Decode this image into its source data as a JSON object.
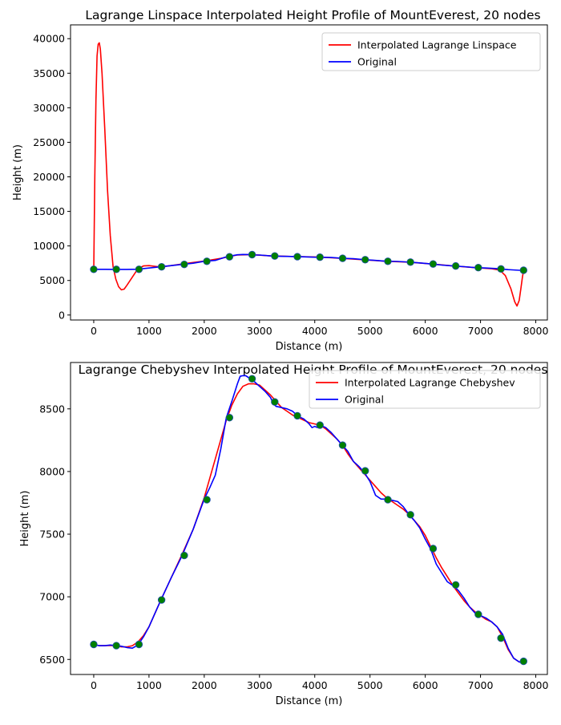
{
  "chart_data": [
    {
      "type": "line",
      "title": "Lagrange Linspace Interpolated Height Profile of MountEverest, 20 nodes",
      "xlabel": "Distance (m)",
      "ylabel": "Height (m)",
      "xlim": [
        -420,
        8210
      ],
      "ylim": [
        -720,
        42000
      ],
      "xticks": [
        0,
        1000,
        2000,
        3000,
        4000,
        5000,
        6000,
        7000,
        8000
      ],
      "yticks": [
        0,
        5000,
        10000,
        15000,
        20000,
        25000,
        30000,
        35000,
        40000
      ],
      "grid": false,
      "legend": "top-right",
      "series": [
        {
          "name": "Interpolated Lagrange Linspace",
          "color": "#ff0000",
          "x": [
            0,
            20,
            40,
            60,
            80,
            100,
            120,
            150,
            200,
            250,
            300,
            350,
            400,
            450,
            500,
            550,
            600,
            700,
            800,
            900,
            1000,
            1100,
            1200,
            1400,
            1700,
            2000,
            2300,
            2600,
            2850,
            3200,
            3700,
            4100,
            4500,
            4900,
            5300,
            5700,
            6100,
            6500,
            6900,
            7200,
            7350,
            7450,
            7550,
            7620,
            7660,
            7700,
            7730,
            7760,
            7780
          ],
          "y": [
            6650,
            20000,
            31000,
            37500,
            39200,
            39400,
            38500,
            35000,
            27000,
            18000,
            11500,
            7000,
            5200,
            4100,
            3650,
            3750,
            4300,
            5500,
            6700,
            7100,
            7150,
            7050,
            6950,
            7150,
            7500,
            7800,
            8200,
            8700,
            8750,
            8550,
            8450,
            8380,
            8200,
            8000,
            7780,
            7660,
            7390,
            7100,
            6860,
            6700,
            6500,
            5700,
            3800,
            1900,
            1300,
            2100,
            3800,
            5600,
            6470
          ]
        },
        {
          "name": "Original",
          "color": "#0000ff",
          "x": [
            0,
            200,
            400,
            600,
            800,
            1000,
            1200,
            1400,
            1600,
            1800,
            2000,
            2200,
            2400,
            2600,
            2700,
            2800,
            2900,
            3000,
            3200,
            3300,
            3500,
            3700,
            3900,
            4000,
            4100,
            4300,
            4500,
            4700,
            4900,
            5100,
            5300,
            5500,
            5700,
            5900,
            6100,
            6300,
            6500,
            6700,
            6900,
            7100,
            7300,
            7500,
            7700,
            7780
          ],
          "y": [
            6620,
            6615,
            6610,
            6600,
            6630,
            6800,
            6980,
            7150,
            7330,
            7500,
            7780,
            7900,
            8430,
            8720,
            8760,
            8750,
            8700,
            8680,
            8550,
            8520,
            8490,
            8440,
            8400,
            8370,
            8360,
            8320,
            8210,
            8150,
            8010,
            7900,
            7780,
            7760,
            7660,
            7550,
            7390,
            7230,
            7100,
            7000,
            6860,
            6800,
            6720,
            6570,
            6480,
            6480
          ]
        }
      ],
      "markers": {
        "color": "#008000",
        "x": [
          0,
          409,
          819,
          1228,
          1638,
          2047,
          2457,
          2866,
          3276,
          3685,
          4094,
          4504,
          4913,
          5323,
          5732,
          6142,
          6551,
          6960,
          7370,
          7779
        ],
        "y": [
          6620,
          6610,
          6620,
          6980,
          7330,
          7780,
          8430,
          8740,
          8550,
          8440,
          8370,
          8210,
          8010,
          7780,
          7660,
          7390,
          7100,
          6860,
          6670,
          6480
        ]
      }
    },
    {
      "type": "line",
      "title": "Lagrange Chebyshev Interpolated Height Profile of MountEverest, 20 nodes",
      "xlabel": "Distance (m)",
      "ylabel": "Height (m)",
      "xlim": [
        -420,
        8210
      ],
      "ylim": [
        6380,
        8870
      ],
      "xticks": [
        0,
        1000,
        2000,
        3000,
        4000,
        5000,
        6000,
        7000,
        8000
      ],
      "yticks": [
        6500,
        7000,
        7500,
        8000,
        8500
      ],
      "grid": false,
      "legend": "top-right",
      "series": [
        {
          "name": "Interpolated Lagrange Chebyshev",
          "color": "#ff0000",
          "x": [
            0,
            100,
            200,
            300,
            400,
            500,
            600,
            700,
            800,
            900,
            1000,
            1200,
            1400,
            1600,
            1800,
            2000,
            2200,
            2400,
            2500,
            2600,
            2700,
            2800,
            2900,
            3000,
            3100,
            3200,
            3300,
            3400,
            3500,
            3600,
            3700,
            3800,
            3900,
            4000,
            4100,
            4200,
            4300,
            4400,
            4500,
            4600,
            4700,
            4800,
            4900,
            5000,
            5100,
            5200,
            5300,
            5400,
            5500,
            5600,
            5700,
            5800,
            5900,
            6000,
            6100,
            6200,
            6300,
            6400,
            6500,
            6600,
            6700,
            6800,
            6900,
            7000,
            7100,
            7200,
            7300,
            7400,
            7500,
            7600,
            7700,
            7780
          ],
          "y": [
            6620,
            6610,
            6610,
            6612,
            6610,
            6600,
            6600,
            6610,
            6640,
            6690,
            6760,
            6960,
            7150,
            7340,
            7540,
            7790,
            8100,
            8410,
            8530,
            8620,
            8680,
            8700,
            8700,
            8690,
            8650,
            8610,
            8560,
            8510,
            8480,
            8450,
            8430,
            8410,
            8390,
            8380,
            8370,
            8340,
            8300,
            8260,
            8210,
            8140,
            8080,
            8030,
            7980,
            7930,
            7880,
            7830,
            7790,
            7760,
            7730,
            7700,
            7660,
            7610,
            7560,
            7490,
            7400,
            7310,
            7230,
            7160,
            7090,
            7030,
            6970,
            6920,
            6880,
            6850,
            6820,
            6800,
            6760,
            6680,
            6580,
            6510,
            6480,
            6480
          ]
        },
        {
          "name": "Original",
          "color": "#0000ff",
          "x": [
            0,
            100,
            200,
            300,
            400,
            500,
            600,
            700,
            800,
            900,
            1000,
            1200,
            1400,
            1600,
            1800,
            2000,
            2100,
            2200,
            2300,
            2400,
            2500,
            2600,
            2650,
            2700,
            2750,
            2800,
            2850,
            2900,
            3000,
            3100,
            3200,
            3250,
            3300,
            3400,
            3500,
            3600,
            3650,
            3700,
            3800,
            3850,
            3900,
            3950,
            4000,
            4050,
            4100,
            4200,
            4300,
            4400,
            4500,
            4600,
            4700,
            4800,
            4900,
            5000,
            5100,
            5200,
            5300,
            5400,
            5500,
            5600,
            5700,
            5800,
            5900,
            6000,
            6100,
            6200,
            6300,
            6400,
            6500,
            6600,
            6700,
            6800,
            6900,
            7000,
            7100,
            7200,
            7300,
            7400,
            7500,
            7600,
            7700,
            7780
          ],
          "y": [
            6620,
            6610,
            6610,
            6615,
            6610,
            6605,
            6595,
            6590,
            6615,
            6680,
            6760,
            6960,
            7150,
            7330,
            7540,
            7780,
            7870,
            7970,
            8180,
            8430,
            8560,
            8700,
            8760,
            8765,
            8765,
            8750,
            8730,
            8720,
            8680,
            8640,
            8590,
            8540,
            8520,
            8510,
            8500,
            8480,
            8460,
            8440,
            8420,
            8400,
            8380,
            8350,
            8360,
            8350,
            8370,
            8350,
            8310,
            8260,
            8210,
            8160,
            8080,
            8040,
            7990,
            7920,
            7810,
            7780,
            7780,
            7770,
            7760,
            7720,
            7660,
            7610,
            7550,
            7460,
            7380,
            7260,
            7190,
            7120,
            7090,
            7050,
            6990,
            6920,
            6870,
            6850,
            6830,
            6800,
            6760,
            6700,
            6590,
            6510,
            6480,
            6480
          ]
        }
      ],
      "markers": {
        "color": "#008000",
        "x": [
          0,
          409,
          819,
          1228,
          1638,
          2047,
          2457,
          2866,
          3276,
          3685,
          4094,
          4504,
          4913,
          5323,
          5732,
          6142,
          6551,
          6960,
          7370,
          7779
        ],
        "y": [
          6620,
          6610,
          6620,
          6975,
          7330,
          7775,
          8430,
          8740,
          8555,
          8445,
          8370,
          8210,
          8005,
          7775,
          7655,
          7385,
          7095,
          6860,
          6670,
          6485
        ]
      }
    }
  ]
}
